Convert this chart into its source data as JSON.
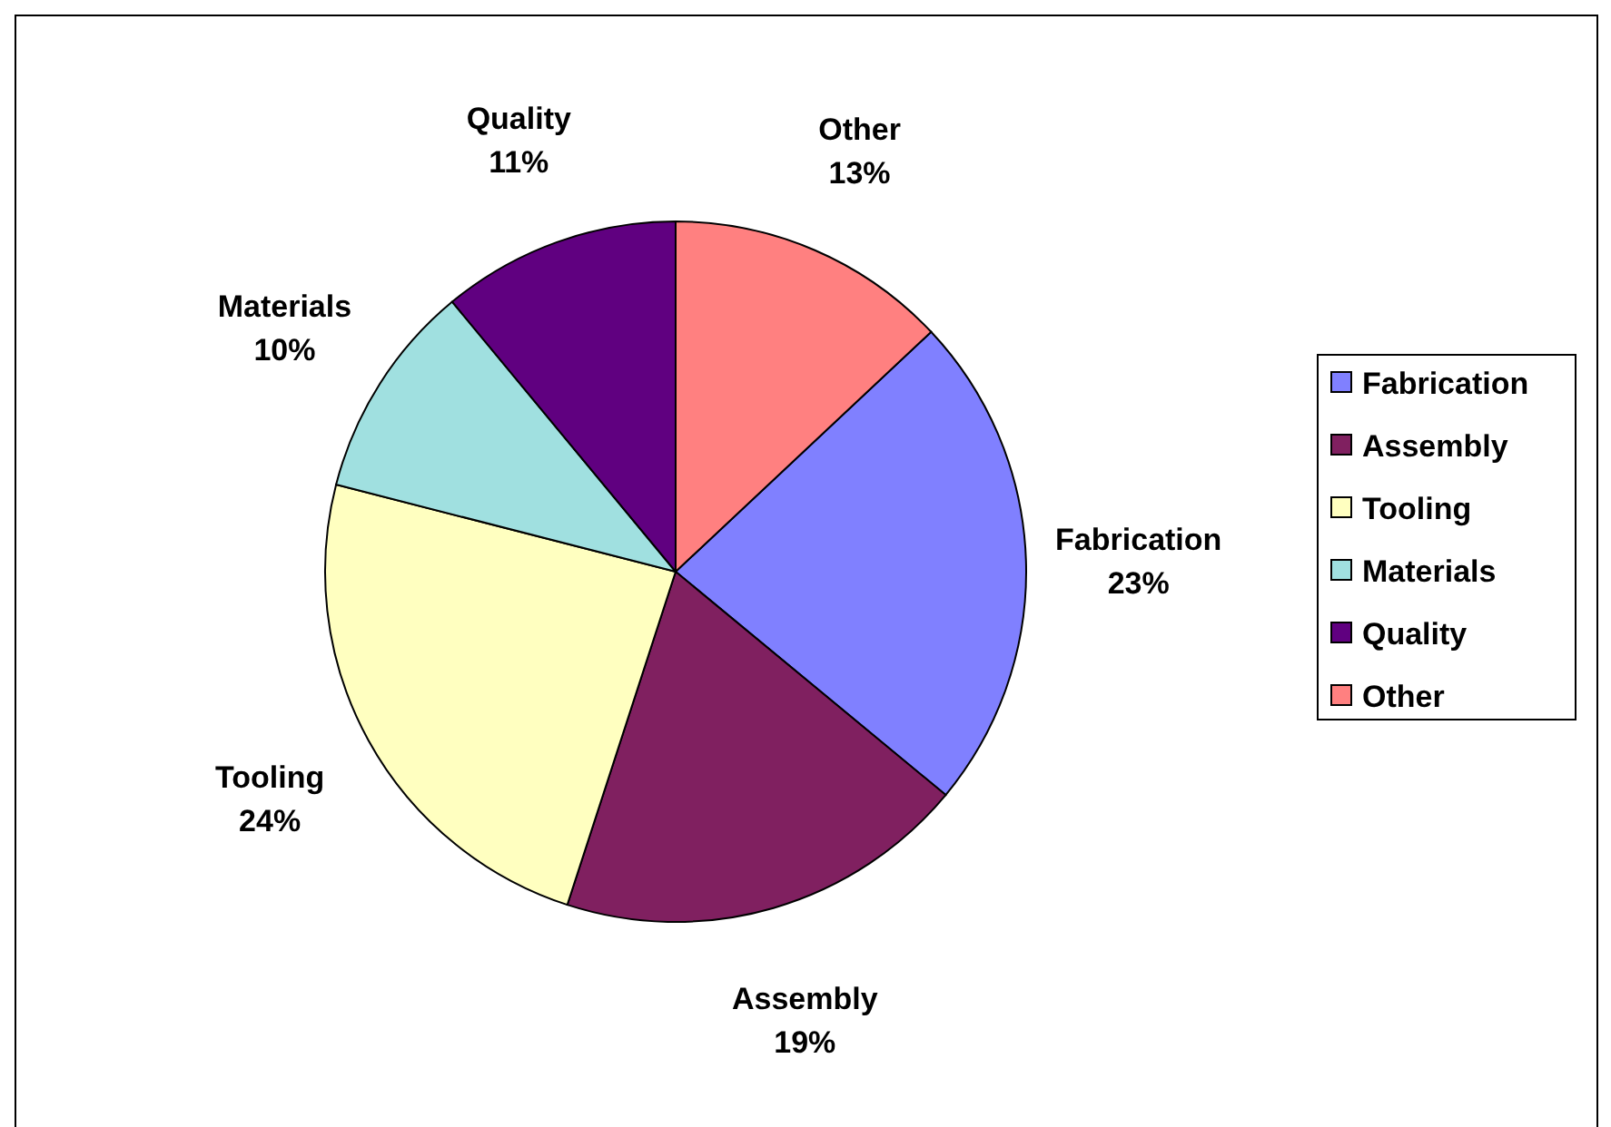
{
  "chart_data": {
    "type": "pie",
    "categories": [
      "Fabrication",
      "Assembly",
      "Tooling",
      "Materials",
      "Quality",
      "Other"
    ],
    "values": [
      23,
      19,
      24,
      10,
      11,
      13
    ],
    "colors": [
      "#8080ff",
      "#802060",
      "#ffffc0",
      "#a0e0e0",
      "#600080",
      "#ff8080"
    ],
    "value_labels": [
      "23%",
      "19%",
      "24%",
      "10%",
      "11%",
      "13%"
    ],
    "legend": "right"
  }
}
